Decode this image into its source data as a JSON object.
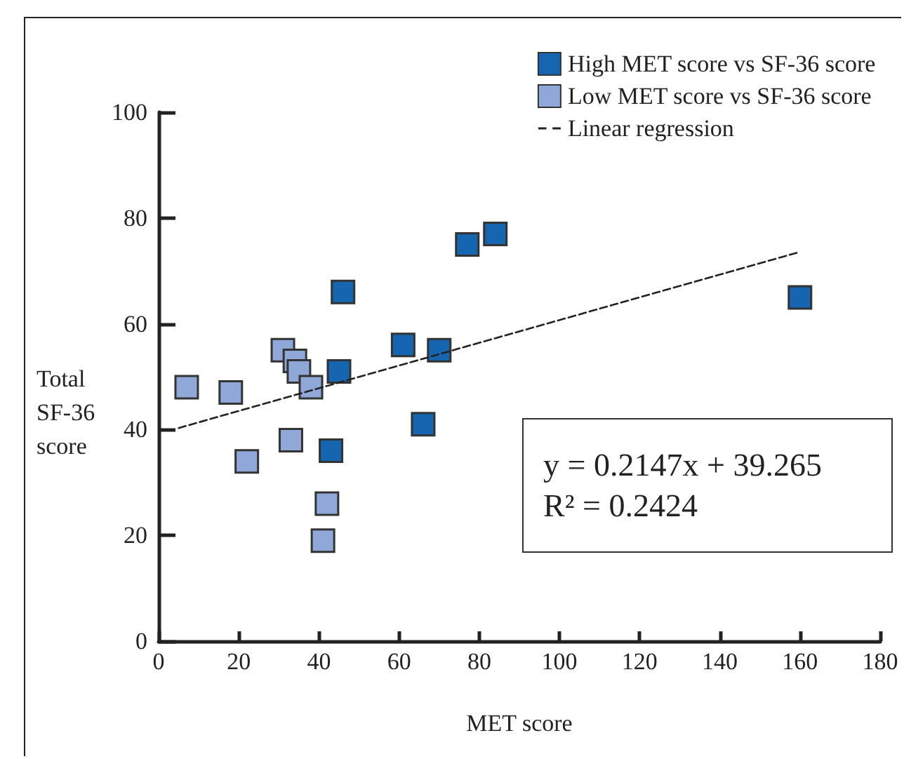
{
  "chart_data": {
    "type": "scatter",
    "xlabel": "MET score",
    "ylabel": "Total\nSF-36\nscore",
    "marker": "square",
    "legend": "top right",
    "grid": false,
    "xlim": [
      0,
      180
    ],
    "xticks": [
      0,
      20,
      40,
      60,
      80,
      100,
      120,
      140,
      160,
      180
    ],
    "ylim": [
      0,
      100
    ],
    "yticks": [
      0,
      20,
      40,
      60,
      80,
      100
    ],
    "annotations": [
      "y = 0.2147x + 39.265",
      "R² = 0.2424"
    ],
    "series": [
      {
        "name": "High MET score vs SF-36 score",
        "color": "#1565b0",
        "x": [
          46,
          45,
          43,
          61,
          66,
          70,
          77,
          84,
          160
        ],
        "values": [
          66,
          51,
          36,
          56,
          41,
          55,
          75,
          77,
          65
        ]
      },
      {
        "name": "Low MET score vs SF-36 score",
        "color": "#8fa8d8",
        "x": [
          7,
          18,
          22,
          31,
          34,
          35,
          38,
          33,
          42,
          41
        ],
        "values": [
          48,
          47,
          34,
          55,
          53,
          51,
          48,
          38,
          26,
          19
        ]
      },
      {
        "name": "Linear regression",
        "type": "line",
        "line_style": "dashed",
        "marker": "none",
        "color": "#222222",
        "x": [
          5,
          160
        ],
        "values": [
          40.3,
          73.6
        ]
      }
    ]
  }
}
